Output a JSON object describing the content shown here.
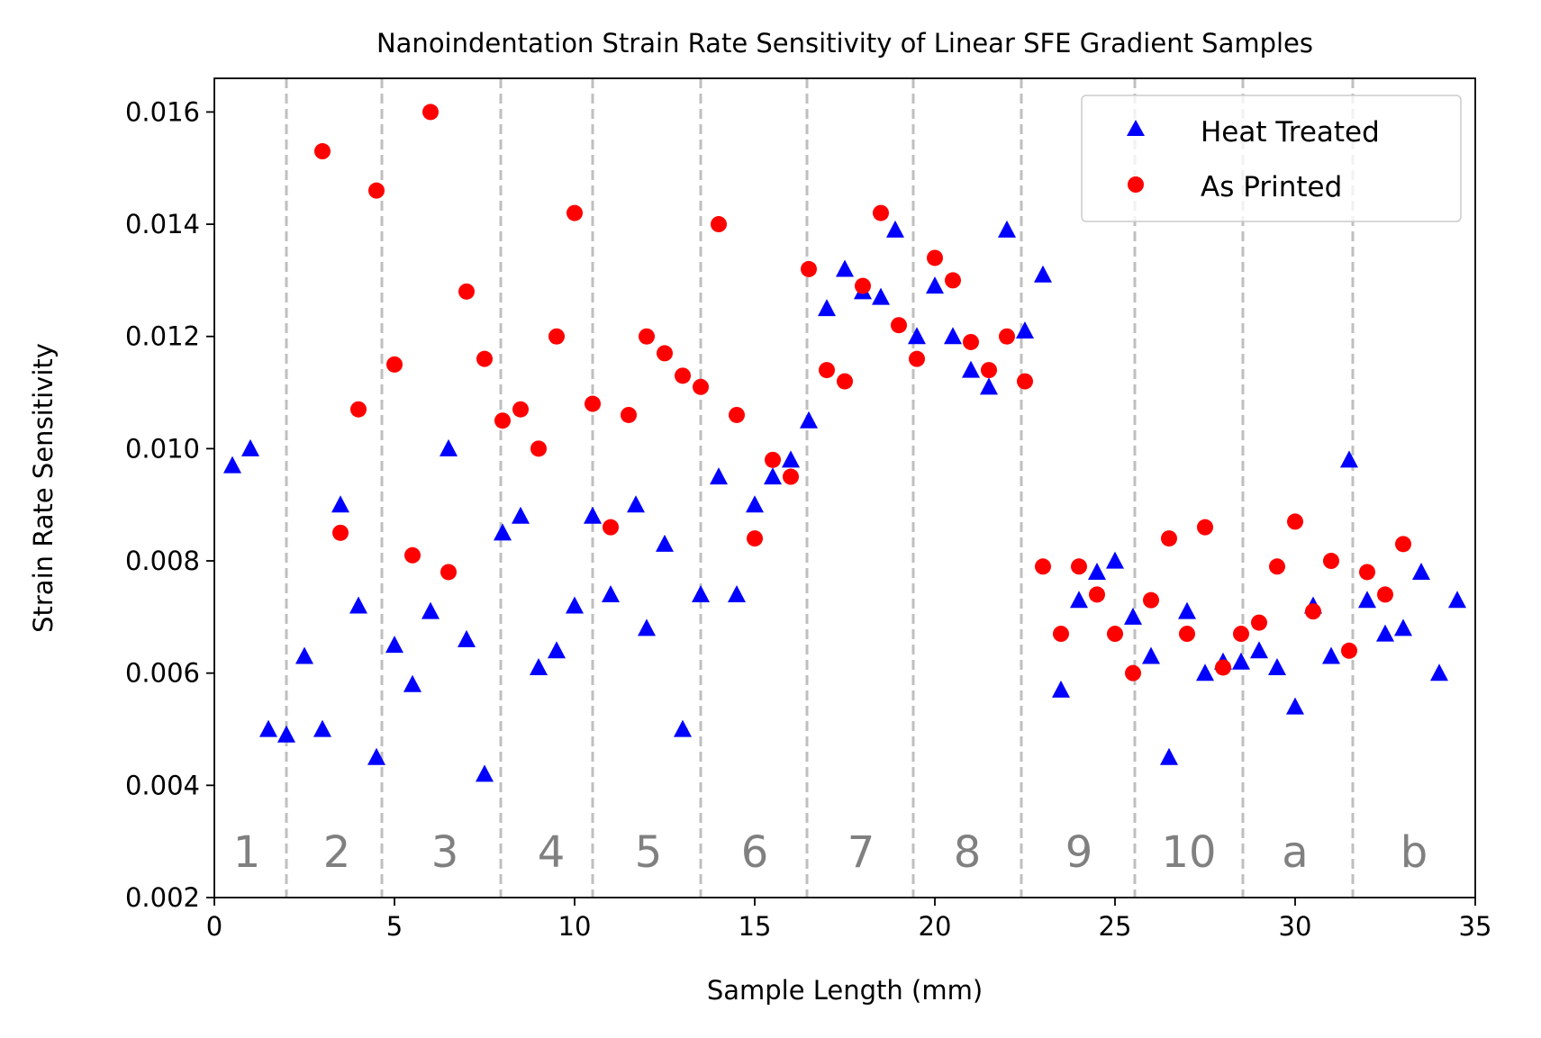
{
  "chart_data": {
    "type": "scatter",
    "title": "Nanoindentation Strain Rate Sensitivity of Linear SFE Gradient Samples",
    "xlabel": "Sample Length (mm)",
    "ylabel": "Strain Rate Sensitivity",
    "xlim": [
      0,
      35
    ],
    "ylim": [
      0.002,
      0.0166
    ],
    "xticks": [
      0,
      5,
      10,
      15,
      20,
      25,
      30,
      35
    ],
    "xtick_labels": [
      "0",
      "5",
      "10",
      "15",
      "20",
      "25",
      "30",
      "35"
    ],
    "yticks": [
      0.002,
      0.004,
      0.006,
      0.008,
      0.01,
      0.012,
      0.014,
      0.016
    ],
    "ytick_labels": [
      "0.002",
      "0.004",
      "0.006",
      "0.008",
      "0.010",
      "0.012",
      "0.014",
      "0.016"
    ],
    "grid": false,
    "legend_position": "top-right",
    "section_boundaries": [
      2.0,
      4.65,
      7.95,
      10.5,
      13.5,
      16.45,
      19.4,
      22.4,
      25.55,
      28.55,
      31.6
    ],
    "section_labels": [
      {
        "label": "1",
        "x": 0.9
      },
      {
        "label": "2",
        "x": 3.4
      },
      {
        "label": "3",
        "x": 6.4
      },
      {
        "label": "4",
        "x": 9.35
      },
      {
        "label": "5",
        "x": 12.05
      },
      {
        "label": "6",
        "x": 15.0
      },
      {
        "label": "7",
        "x": 17.95
      },
      {
        "label": "8",
        "x": 20.9
      },
      {
        "label": "9",
        "x": 24.0
      },
      {
        "label": "10",
        "x": 27.05
      },
      {
        "label": "a",
        "x": 30.0
      },
      {
        "label": "b",
        "x": 33.3
      }
    ],
    "series": [
      {
        "name": "Heat Treated",
        "marker": "triangle",
        "color": "#0000ff",
        "x": [
          0.5,
          1.0,
          1.5,
          2.0,
          2.5,
          3.0,
          3.5,
          4.0,
          4.5,
          5.0,
          5.5,
          6.0,
          6.5,
          7.0,
          7.5,
          8.0,
          8.5,
          9.0,
          9.5,
          10.0,
          10.5,
          11.0,
          11.7,
          12.0,
          12.5,
          13.0,
          13.5,
          14.0,
          14.5,
          15.0,
          15.5,
          16.0,
          16.5,
          17.0,
          17.5,
          18.0,
          18.5,
          18.9,
          19.5,
          20.0,
          20.5,
          21.0,
          21.5,
          22.0,
          22.5,
          23.0,
          23.5,
          24.0,
          24.5,
          25.0,
          25.5,
          26.0,
          26.5,
          27.0,
          27.5,
          28.0,
          28.5,
          29.0,
          29.5,
          30.0,
          30.5,
          31.0,
          31.5,
          32.0,
          32.5,
          33.0,
          33.5,
          34.0,
          34.5
        ],
        "y": [
          0.0097,
          0.01,
          0.005,
          0.0049,
          0.0063,
          0.005,
          0.009,
          0.0072,
          0.0045,
          0.0065,
          0.0058,
          0.0071,
          0.01,
          0.0066,
          0.0042,
          0.0085,
          0.0088,
          0.0061,
          0.0064,
          0.0072,
          0.0088,
          0.0074,
          0.009,
          0.0068,
          0.0083,
          0.005,
          0.0074,
          0.0095,
          0.0074,
          0.009,
          0.0095,
          0.0098,
          0.0105,
          0.0125,
          0.0132,
          0.0128,
          0.0127,
          0.0139,
          0.012,
          0.0129,
          0.012,
          0.0114,
          0.0111,
          0.0139,
          0.0121,
          0.0131,
          0.0057,
          0.0073,
          0.0078,
          0.008,
          0.007,
          0.0063,
          0.0045,
          0.0071,
          0.006,
          0.0062,
          0.0062,
          0.0064,
          0.0061,
          0.0054,
          0.0072,
          0.0063,
          0.0098,
          0.0073,
          0.0067,
          0.0068,
          0.0078,
          0.006,
          0.0073
        ]
      },
      {
        "name": "As Printed",
        "marker": "circle",
        "color": "#ff0000",
        "x": [
          3.0,
          3.5,
          4.0,
          4.5,
          5.0,
          5.5,
          6.0,
          6.5,
          7.0,
          7.5,
          8.0,
          8.5,
          9.0,
          9.5,
          10.0,
          10.5,
          11.0,
          11.5,
          12.0,
          12.5,
          13.0,
          13.5,
          14.0,
          14.5,
          15.0,
          15.5,
          16.0,
          16.5,
          17.0,
          17.5,
          18.0,
          18.5,
          19.0,
          19.5,
          20.0,
          20.5,
          21.0,
          21.5,
          22.0,
          22.5,
          23.0,
          23.5,
          24.0,
          24.5,
          25.0,
          25.5,
          26.0,
          26.5,
          27.0,
          27.5,
          28.0,
          28.5,
          29.0,
          29.5,
          30.0,
          30.5,
          31.0,
          31.5,
          32.0,
          32.5,
          33.0
        ],
        "y": [
          0.0153,
          0.0085,
          0.0107,
          0.0146,
          0.0115,
          0.0081,
          0.016,
          0.0078,
          0.0128,
          0.0116,
          0.0105,
          0.0107,
          0.01,
          0.012,
          0.0142,
          0.0108,
          0.0086,
          0.0106,
          0.012,
          0.0117,
          0.0113,
          0.0111,
          0.014,
          0.0106,
          0.0084,
          0.0098,
          0.0095,
          0.0132,
          0.0114,
          0.0112,
          0.0129,
          0.0142,
          0.0122,
          0.0116,
          0.0134,
          0.013,
          0.0119,
          0.0114,
          0.012,
          0.0112,
          0.0079,
          0.0067,
          0.0079,
          0.0074,
          0.0067,
          0.006,
          0.0073,
          0.0084,
          0.0067,
          0.0086,
          0.0061,
          0.0067,
          0.0069,
          0.0079,
          0.0087,
          0.0071,
          0.008,
          0.0064,
          0.0078,
          0.0074,
          0.0083
        ]
      }
    ]
  }
}
